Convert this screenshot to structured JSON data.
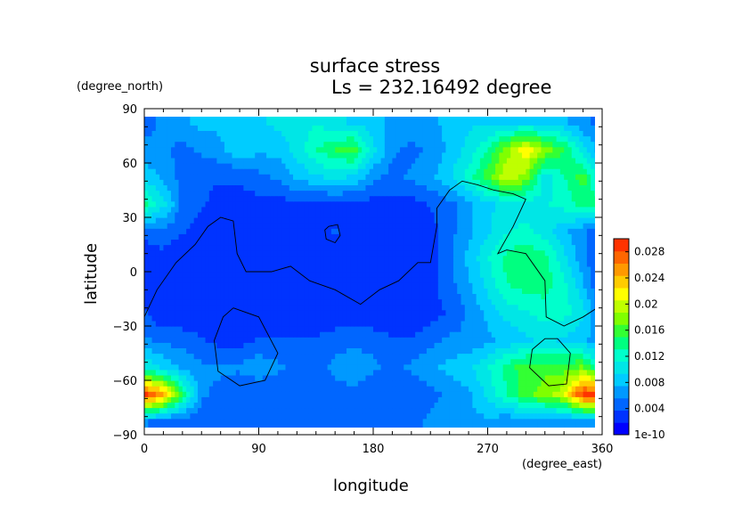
{
  "chart_data": {
    "type": "heatmap",
    "title": "surface stress",
    "subtitle": "Ls = 232.16492 degree",
    "xlabel": "longitude",
    "ylabel": "latitude",
    "x_unit": "(degree_east)",
    "y_unit": "(degree_north)",
    "xlim": [
      0,
      360
    ],
    "ylim": [
      -90,
      90
    ],
    "x_ticks": [
      0,
      90,
      180,
      270,
      360
    ],
    "y_ticks": [
      -90,
      -60,
      -30,
      0,
      30,
      60,
      90
    ],
    "x_tick_labels": [
      "0",
      "90",
      "180",
      "270",
      "360"
    ],
    "y_tick_labels": [
      "−90",
      "−60",
      "−30",
      "0",
      "30",
      "60",
      "90"
    ],
    "colorbar": {
      "min": 0,
      "max": 0.03,
      "tick_values": [
        0,
        0.004,
        0.008,
        0.012,
        0.016,
        0.02,
        0.024,
        0.028
      ],
      "tick_labels": [
        "1e-10",
        "0.004",
        "0.008",
        "0.012",
        "0.016",
        "0.02",
        "0.024",
        "0.028"
      ],
      "colors": [
        "#0000ff",
        "#0033ff",
        "#0066ff",
        "#0099ff",
        "#00ccff",
        "#00e6e6",
        "#00ffcc",
        "#00ff80",
        "#33ff33",
        "#80ff00",
        "#bfff00",
        "#ffff00",
        "#ffcc00",
        "#ff9900",
        "#ff6600",
        "#ff3300"
      ]
    },
    "grid": false,
    "legend": "colorbar-right",
    "field": {
      "lon_step": 15,
      "lat_step": 15,
      "lons": [
        0,
        15,
        30,
        45,
        60,
        75,
        90,
        105,
        120,
        135,
        150,
        165,
        180,
        195,
        210,
        225,
        240,
        255,
        270,
        285,
        300,
        315,
        330,
        345
      ],
      "lats": [
        -82.5,
        -67.5,
        -52.5,
        -37.5,
        -22.5,
        -7.5,
        7.5,
        22.5,
        37.5,
        52.5,
        67.5,
        82.5
      ],
      "values": [
        [
          0.006,
          0.004,
          0.004,
          0.004,
          0.004,
          0.004,
          0.004,
          0.004,
          0.004,
          0.004,
          0.004,
          0.004,
          0.004,
          0.004,
          0.005,
          0.006,
          0.007,
          0.007,
          0.007,
          0.006,
          0.006,
          0.006,
          0.006,
          0.006
        ],
        [
          0.029,
          0.025,
          0.015,
          0.006,
          0.005,
          0.004,
          0.004,
          0.004,
          0.004,
          0.004,
          0.005,
          0.005,
          0.004,
          0.004,
          0.004,
          0.005,
          0.006,
          0.007,
          0.01,
          0.013,
          0.016,
          0.018,
          0.02,
          0.029
        ],
        [
          0.011,
          0.009,
          0.007,
          0.006,
          0.006,
          0.006,
          0.007,
          0.006,
          0.005,
          0.005,
          0.006,
          0.007,
          0.006,
          0.005,
          0.006,
          0.007,
          0.008,
          0.009,
          0.011,
          0.014,
          0.016,
          0.016,
          0.016,
          0.017
        ],
        [
          0.006,
          0.005,
          0.005,
          0.004,
          0.003,
          0.003,
          0.004,
          0.004,
          0.004,
          0.004,
          0.005,
          0.005,
          0.005,
          0.004,
          0.004,
          0.005,
          0.006,
          0.006,
          0.007,
          0.008,
          0.009,
          0.01,
          0.009,
          0.008
        ],
        [
          0.004,
          0.002,
          0.002,
          0.002,
          0.002,
          0.002,
          0.002,
          0.002,
          0.002,
          0.002,
          0.002,
          0.002,
          0.002,
          0.002,
          0.002,
          0.003,
          0.004,
          0.006,
          0.008,
          0.01,
          0.011,
          0.012,
          0.012,
          0.01
        ],
        [
          0.003,
          0.002,
          0.002,
          0.002,
          0.002,
          0.002,
          0.002,
          0.002,
          0.002,
          0.002,
          0.002,
          0.002,
          0.002,
          0.002,
          0.002,
          0.003,
          0.005,
          0.007,
          0.01,
          0.013,
          0.014,
          0.014,
          0.012,
          0.008
        ],
        [
          0.003,
          0.003,
          0.002,
          0.002,
          0.002,
          0.002,
          0.002,
          0.002,
          0.002,
          0.002,
          0.002,
          0.002,
          0.002,
          0.002,
          0.002,
          0.003,
          0.005,
          0.008,
          0.011,
          0.014,
          0.015,
          0.014,
          0.01,
          0.006
        ],
        [
          0.004,
          0.005,
          0.004,
          0.003,
          0.003,
          0.003,
          0.003,
          0.002,
          0.002,
          0.003,
          0.004,
          0.003,
          0.002,
          0.002,
          0.002,
          0.003,
          0.005,
          0.007,
          0.009,
          0.011,
          0.012,
          0.01,
          0.008,
          0.006
        ],
        [
          0.014,
          0.01,
          0.005,
          0.004,
          0.003,
          0.003,
          0.003,
          0.003,
          0.003,
          0.003,
          0.003,
          0.003,
          0.003,
          0.003,
          0.003,
          0.004,
          0.005,
          0.007,
          0.009,
          0.01,
          0.01,
          0.011,
          0.012,
          0.014
        ],
        [
          0.009,
          0.007,
          0.005,
          0.004,
          0.004,
          0.004,
          0.005,
          0.006,
          0.008,
          0.009,
          0.01,
          0.009,
          0.006,
          0.005,
          0.006,
          0.007,
          0.009,
          0.012,
          0.016,
          0.02,
          0.018,
          0.01,
          0.013,
          0.016
        ],
        [
          0.006,
          0.006,
          0.005,
          0.006,
          0.007,
          0.009,
          0.008,
          0.008,
          0.01,
          0.013,
          0.015,
          0.016,
          0.01,
          0.006,
          0.005,
          0.006,
          0.008,
          0.01,
          0.013,
          0.018,
          0.022,
          0.018,
          0.015,
          0.01
        ],
        [
          0.005,
          0.006,
          0.007,
          0.008,
          0.008,
          0.009,
          0.009,
          0.01,
          0.01,
          0.011,
          0.01,
          0.009,
          0.008,
          0.007,
          0.007,
          0.007,
          0.008,
          0.009,
          0.009,
          0.009,
          0.009,
          0.009,
          0.008,
          0.006
        ]
      ]
    },
    "contour_lines": [
      {
        "name": "boundary-main",
        "points": [
          [
            0,
            -25
          ],
          [
            10,
            -10
          ],
          [
            25,
            5
          ],
          [
            40,
            15
          ],
          [
            50,
            25
          ],
          [
            60,
            30
          ],
          [
            70,
            28
          ],
          [
            73,
            10
          ],
          [
            80,
            0
          ],
          [
            100,
            0
          ],
          [
            115,
            3
          ],
          [
            130,
            -5
          ],
          [
            150,
            -10
          ],
          [
            170,
            -18
          ],
          [
            185,
            -10
          ],
          [
            200,
            -5
          ],
          [
            215,
            5
          ],
          [
            225,
            5
          ],
          [
            230,
            25
          ],
          [
            230,
            35
          ],
          [
            240,
            45
          ],
          [
            250,
            50
          ],
          [
            262,
            48
          ],
          [
            275,
            45
          ],
          [
            290,
            43
          ],
          [
            300,
            40
          ],
          [
            290,
            25
          ],
          [
            278,
            10
          ],
          [
            285,
            12
          ],
          [
            300,
            10
          ],
          [
            315,
            -5
          ],
          [
            316,
            -25
          ],
          [
            330,
            -30
          ],
          [
            345,
            -25
          ],
          [
            356,
            -20
          ]
        ]
      },
      {
        "name": "boundary-loop-a",
        "points": [
          [
            145,
            25
          ],
          [
            152,
            26
          ],
          [
            154,
            20
          ],
          [
            150,
            16
          ],
          [
            143,
            18
          ],
          [
            142,
            23
          ],
          [
            145,
            25
          ]
        ]
      },
      {
        "name": "boundary-loop-b",
        "points": [
          [
            70,
            -20
          ],
          [
            90,
            -25
          ],
          [
            105,
            -45
          ],
          [
            95,
            -60
          ],
          [
            75,
            -63
          ],
          [
            58,
            -55
          ],
          [
            55,
            -38
          ],
          [
            62,
            -25
          ],
          [
            70,
            -20
          ]
        ]
      },
      {
        "name": "boundary-loop-c",
        "points": [
          [
            325,
            -37
          ],
          [
            335,
            -45
          ],
          [
            332,
            -62
          ],
          [
            318,
            -63
          ],
          [
            303,
            -53
          ],
          [
            305,
            -43
          ],
          [
            315,
            -37
          ],
          [
            325,
            -37
          ]
        ]
      }
    ]
  }
}
